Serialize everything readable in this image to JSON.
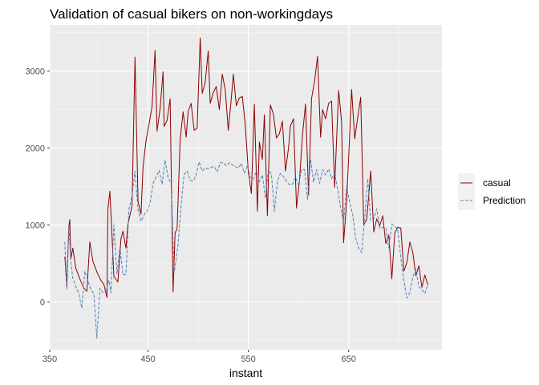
{
  "chart_data": {
    "type": "line",
    "title": "Validation of casual bikers on non-workingdays",
    "xlabel": "instant",
    "ylabel": "",
    "xlim": [
      352,
      743
    ],
    "ylim": [
      -620,
      3600
    ],
    "x_ticks": [
      350,
      450,
      550,
      650
    ],
    "y_ticks": [
      0,
      1000,
      2000,
      3000
    ],
    "grid": true,
    "legend_position": "right",
    "series": [
      {
        "name": "casual",
        "color": "#8b0000",
        "linetype": "solid",
        "x": [
          367,
          369,
          371,
          372,
          373,
          375,
          378,
          382,
          386,
          389,
          392,
          395,
          399,
          403,
          406,
          409,
          410,
          412,
          416,
          420,
          423,
          425,
          428,
          430,
          434,
          437,
          440,
          443,
          445,
          448,
          451,
          454,
          457,
          459,
          462,
          465,
          466,
          469,
          472,
          475,
          477,
          479,
          482,
          485,
          488,
          490,
          493,
          496,
          499,
          502,
          504,
          507,
          510,
          512,
          515,
          518,
          521,
          524,
          527,
          530,
          533,
          535,
          538,
          541,
          544,
          547,
          550,
          553,
          556,
          559,
          561,
          564,
          566,
          569,
          572,
          575,
          578,
          581,
          584,
          587,
          590,
          592,
          595,
          598,
          601,
          604,
          607,
          610,
          613,
          616,
          619,
          622,
          624,
          627,
          630,
          633,
          636,
          640,
          643,
          645,
          648,
          650,
          653,
          656,
          659,
          662,
          665,
          668,
          672,
          675,
          678,
          681,
          684,
          687,
          690,
          693,
          696,
          699,
          702,
          705,
          708,
          711,
          714,
          717,
          720,
          723,
          726,
          729
        ],
        "y": [
          590,
          210,
          980,
          1070,
          560,
          700,
          440,
          300,
          180,
          140,
          780,
          530,
          390,
          280,
          230,
          60,
          1200,
          1440,
          330,
          260,
          820,
          920,
          700,
          1010,
          1250,
          3180,
          1310,
          1140,
          1750,
          2100,
          2310,
          2540,
          3270,
          2220,
          2510,
          2990,
          2280,
          2360,
          2640,
          130,
          900,
          950,
          2110,
          2470,
          2140,
          2480,
          2580,
          2230,
          2260,
          3430,
          2710,
          2850,
          3260,
          2580,
          2720,
          2800,
          2500,
          2960,
          2750,
          2230,
          2650,
          2960,
          2550,
          2650,
          2670,
          2290,
          1690,
          1410,
          2570,
          1180,
          2080,
          1850,
          2430,
          1120,
          2560,
          2440,
          2130,
          2190,
          2350,
          1700,
          2000,
          2290,
          2380,
          1220,
          1580,
          2180,
          2570,
          1390,
          2640,
          2870,
          3190,
          2140,
          2500,
          2380,
          2580,
          2610,
          1490,
          2750,
          2340,
          770,
          1310,
          1880,
          2760,
          2120,
          2390,
          2660,
          1000,
          1070,
          1700,
          910,
          1080,
          990,
          1120,
          760,
          870,
          300,
          900,
          970,
          960,
          400,
          510,
          780,
          640,
          340,
          470,
          190,
          350,
          220
        ]
      },
      {
        "name": "Prediction",
        "color": "#4f81bd",
        "linetype": "dashed",
        "x": [
          367,
          369,
          371,
          373,
          375,
          378,
          381,
          384,
          387,
          390,
          393,
          396,
          399,
          402,
          405,
          408,
          411,
          413,
          416,
          419,
          422,
          425,
          428,
          431,
          434,
          437,
          440,
          443,
          446,
          449,
          452,
          455,
          458,
          461,
          464,
          467,
          470,
          473,
          476,
          478,
          480,
          483,
          486,
          489,
          492,
          495,
          498,
          501,
          504,
          507,
          510,
          513,
          516,
          519,
          522,
          525,
          528,
          531,
          534,
          537,
          540,
          543,
          546,
          549,
          552,
          555,
          558,
          561,
          564,
          567,
          570,
          573,
          576,
          579,
          582,
          585,
          588,
          591,
          594,
          597,
          600,
          603,
          606,
          609,
          612,
          615,
          618,
          621,
          624,
          627,
          630,
          633,
          636,
          639,
          642,
          645,
          648,
          651,
          654,
          657,
          660,
          663,
          666,
          669,
          672,
          675,
          678,
          681,
          684,
          687,
          690,
          693,
          696,
          699,
          702,
          705,
          708,
          711,
          714,
          717,
          720,
          723,
          726,
          729
        ],
        "y": [
          780,
          160,
          1000,
          520,
          310,
          200,
          110,
          -80,
          400,
          280,
          160,
          110,
          -470,
          180,
          120,
          140,
          280,
          120,
          1000,
          360,
          710,
          350,
          360,
          1210,
          1370,
          1700,
          1200,
          1050,
          1130,
          1180,
          1280,
          1540,
          1620,
          1710,
          1530,
          1840,
          1620,
          1530,
          380,
          550,
          760,
          1260,
          1660,
          1700,
          1580,
          1570,
          1650,
          1820,
          1700,
          1740,
          1730,
          1750,
          1760,
          1690,
          1810,
          1810,
          1770,
          1810,
          1780,
          1760,
          1740,
          1800,
          1670,
          1770,
          1620,
          1590,
          1700,
          1560,
          1650,
          1350,
          1720,
          1660,
          1180,
          1570,
          1670,
          1630,
          1570,
          1520,
          1530,
          1620,
          1520,
          1720,
          1720,
          1330,
          1850,
          1560,
          1720,
          1540,
          1720,
          1650,
          1730,
          1600,
          1670,
          1470,
          1230,
          1040,
          1510,
          1290,
          1140,
          830,
          700,
          640,
          1080,
          1600,
          1060,
          1080,
          1210,
          950,
          970,
          960,
          700,
          1010,
          990,
          930,
          580,
          280,
          50,
          120,
          330,
          420,
          200,
          160,
          110,
          230
        ]
      }
    ]
  }
}
